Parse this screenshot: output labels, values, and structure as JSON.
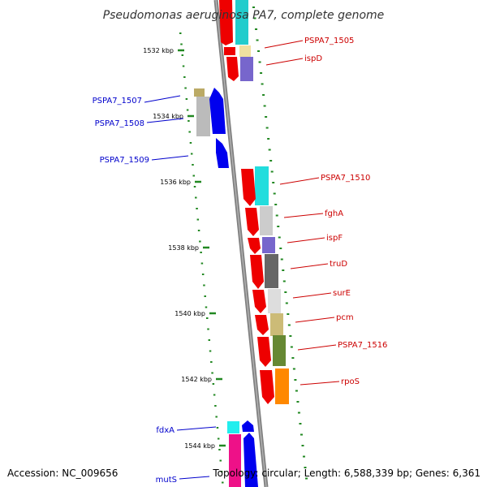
{
  "title": "Pseudomonas aeruginosa PA7, complete genome",
  "footer": {
    "accession": "Accession: NC_009656",
    "topology": "Topology: circular; Length: 6,588,339 bp; Genes: 6,361"
  },
  "colors": {
    "forward_cds": "#ee0000",
    "reverse_cds": "#0000ee",
    "forward_label": "#cc0000",
    "reverse_label": "#0000cc",
    "backbone": "#888888",
    "tick": "#228822"
  },
  "ticks": [
    {
      "label": "1532 kbp"
    },
    {
      "label": "1534 kbp"
    },
    {
      "label": "1536 kbp"
    },
    {
      "label": "1538 kbp"
    },
    {
      "label": "1540 kbp"
    },
    {
      "label": "1542 kbp"
    },
    {
      "label": "1544 kbp"
    }
  ],
  "forward_genes": [
    {
      "name": "PSPA7_1505"
    },
    {
      "name": "ispD"
    },
    {
      "name": "PSPA7_1510"
    },
    {
      "name": "fghA"
    },
    {
      "name": "ispF"
    },
    {
      "name": "truD"
    },
    {
      "name": "surE"
    },
    {
      "name": "pcm"
    },
    {
      "name": "PSPA7_1516"
    },
    {
      "name": "rpoS"
    }
  ],
  "reverse_genes": [
    {
      "name": "PSPA7_1507"
    },
    {
      "name": "PSPA7_1508"
    },
    {
      "name": "PSPA7_1509"
    },
    {
      "name": "fdxA"
    },
    {
      "name": "mutS"
    }
  ]
}
